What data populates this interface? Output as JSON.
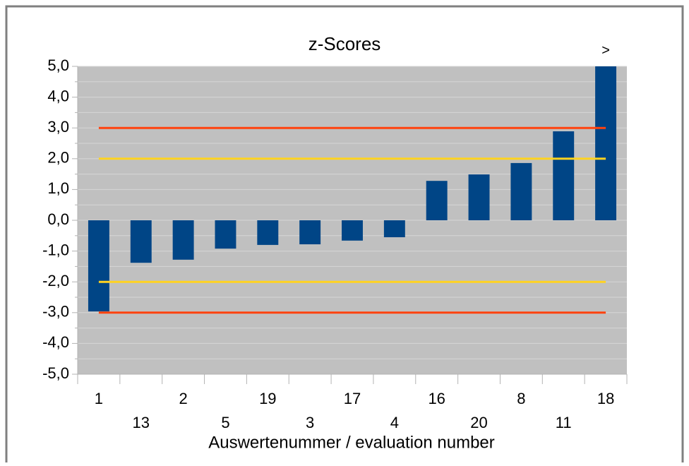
{
  "chart_data": {
    "type": "bar",
    "title": "z-Scores",
    "x_label": "Auswertenummer / evaluation number",
    "annotation": ">",
    "categories": [
      "1",
      "13",
      "2",
      "5",
      "19",
      "3",
      "17",
      "4",
      "16",
      "20",
      "8",
      "11",
      "18"
    ],
    "values": [
      -2.96,
      -1.38,
      -1.28,
      -0.92,
      -0.8,
      -0.78,
      -0.66,
      -0.55,
      1.28,
      1.49,
      1.86,
      2.89,
      5.0
    ],
    "color": "#004586",
    "reference_lines": [
      {
        "value": 3,
        "color": "#ff420e"
      },
      {
        "value": 2,
        "color": "#ffd320"
      },
      {
        "value": -2,
        "color": "#ffd320"
      },
      {
        "value": -3,
        "color": "#ff420e"
      }
    ],
    "ylim": [
      -5,
      5
    ],
    "yticks": [
      {
        "value": -5,
        "label": "-5,0"
      },
      {
        "value": -4,
        "label": "-4,0"
      },
      {
        "value": -3,
        "label": "-3,0"
      },
      {
        "value": -2,
        "label": "-2,0"
      },
      {
        "value": -1,
        "label": "-1,0"
      },
      {
        "value": 0,
        "label": "0,0"
      },
      {
        "value": 1,
        "label": "1,0"
      },
      {
        "value": 2,
        "label": "2,0"
      },
      {
        "value": 3,
        "label": "3,0"
      },
      {
        "value": 4,
        "label": "4,0"
      },
      {
        "value": 5,
        "label": "5,0"
      }
    ],
    "yminorticks": [
      -4.5,
      -3.5,
      -2.5,
      -1.5,
      -0.5,
      0.5,
      1.5,
      2.5,
      3.5,
      4.5
    ],
    "grid": true,
    "plot_background": "#c0c0c0",
    "grid_color": "#d6d6d6"
  }
}
